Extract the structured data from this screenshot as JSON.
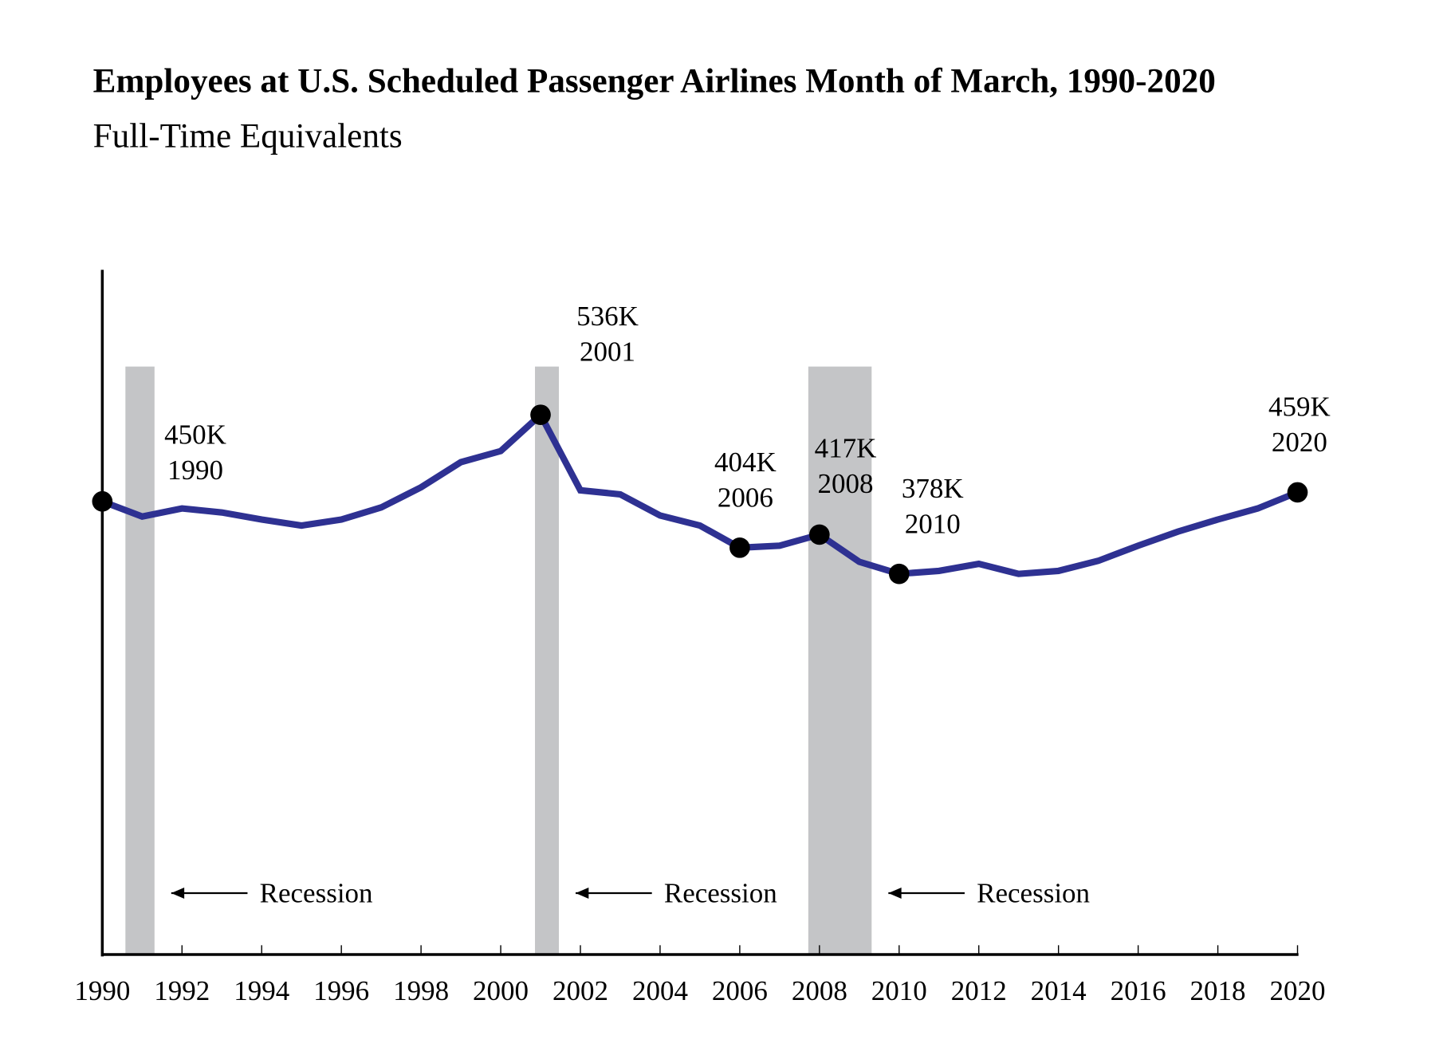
{
  "chart_data": {
    "type": "line",
    "title": "Employees at U.S. Scheduled Passenger Airlines Month of March, 1990-2020",
    "subtitle": "Full-Time Equivalents",
    "xlabel": "",
    "ylabel": "",
    "xlim": [
      1990,
      2020
    ],
    "ylim": [
      0,
      680
    ],
    "grid": false,
    "x_ticks": [
      "1990",
      "1992",
      "1994",
      "1996",
      "1998",
      "2000",
      "2002",
      "2004",
      "2006",
      "2008",
      "2010",
      "2012",
      "2014",
      "2016",
      "2018",
      "2020"
    ],
    "line_color": "#2e3192",
    "recession_color": "#c4c5c7",
    "x": [
      1990,
      1991,
      1992,
      1993,
      1994,
      1995,
      1996,
      1997,
      1998,
      1999,
      2000,
      2001,
      2002,
      2003,
      2004,
      2005,
      2006,
      2007,
      2008,
      2009,
      2010,
      2011,
      2012,
      2013,
      2014,
      2015,
      2016,
      2017,
      2018,
      2019,
      2020
    ],
    "values": [
      450,
      435,
      443,
      439,
      432,
      426,
      432,
      444,
      464,
      489,
      500,
      536,
      461,
      457,
      436,
      426,
      404,
      406,
      417,
      390,
      378,
      381,
      388,
      378,
      381,
      391,
      406,
      420,
      432,
      443,
      459
    ],
    "highlighted_points": [
      {
        "year": 1990,
        "value": 450,
        "label": "450K",
        "year_label": "1990"
      },
      {
        "year": 2001,
        "value": 536,
        "label": "536K",
        "year_label": "2001"
      },
      {
        "year": 2006,
        "value": 404,
        "label": "404K",
        "year_label": "2006"
      },
      {
        "year": 2008,
        "value": 417,
        "label": "417K",
        "year_label": "2008"
      },
      {
        "year": 2010,
        "value": 378,
        "label": "378K",
        "year_label": "2010"
      },
      {
        "year": 2020,
        "value": 459,
        "label": "459K",
        "year_label": "2020"
      }
    ],
    "recessions": [
      {
        "start": 1990.58,
        "end": 1991.31,
        "label": "Recession"
      },
      {
        "start": 2000.86,
        "end": 2001.46,
        "label": "Recession"
      },
      {
        "start": 2007.72,
        "end": 2009.31,
        "label": "Recession"
      }
    ]
  }
}
